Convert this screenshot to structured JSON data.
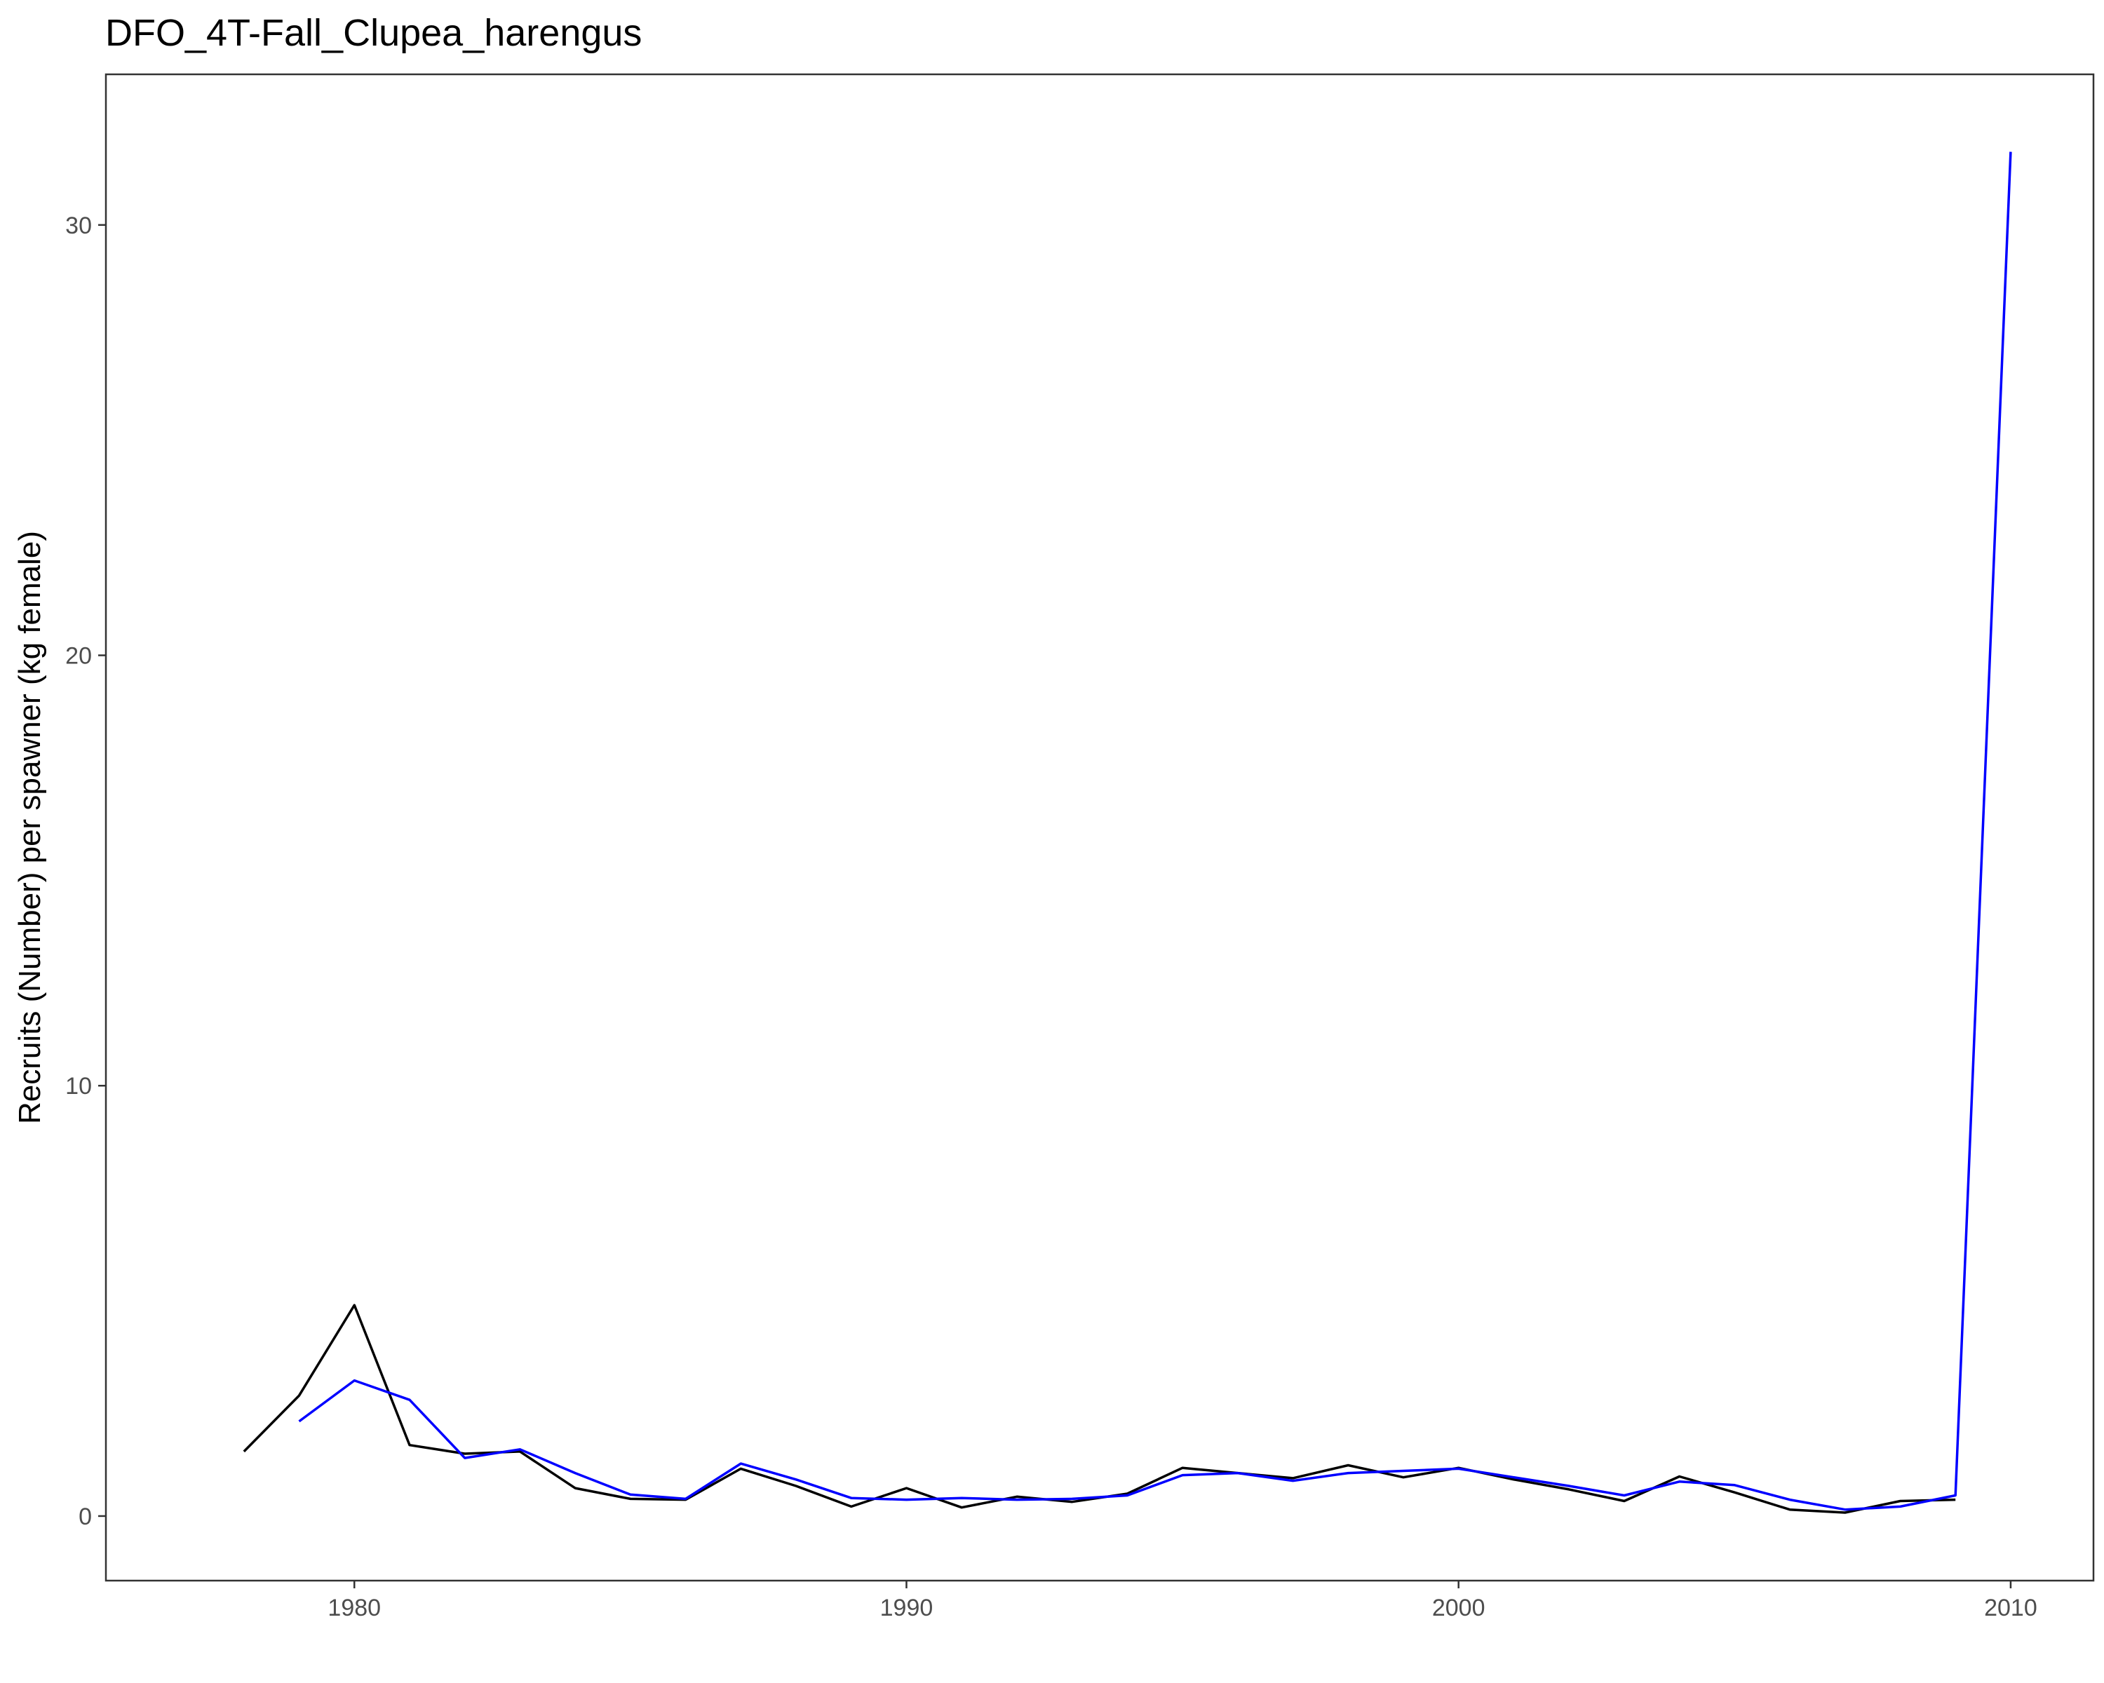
{
  "chart_data": {
    "type": "line",
    "title": "DFO_4T-Fall_Clupea_harengus",
    "xlabel": "",
    "ylabel": "Recruits (Number) per spawner (kg female)",
    "xlim": [
      1975.5,
      2011.5
    ],
    "ylim": [
      -1.5,
      33.5
    ],
    "x_ticks": [
      1980,
      1990,
      2000,
      2010
    ],
    "y_ticks": [
      0,
      10,
      20,
      30
    ],
    "grid": false,
    "legend": "none",
    "series": [
      {
        "color": "#000000",
        "x": [
          1978,
          1979,
          1980,
          1981,
          1982,
          1983,
          1984,
          1985,
          1986,
          1987,
          1988,
          1989,
          1990,
          1991,
          1992,
          1993,
          1994,
          1995,
          1996,
          1997,
          1998,
          1999,
          2000,
          2001,
          2002,
          2003,
          2004,
          2005,
          2006,
          2007,
          2008,
          2009
        ],
        "y": [
          1.5,
          2.8,
          4.9,
          1.65,
          1.45,
          1.5,
          0.65,
          0.4,
          0.38,
          1.1,
          0.7,
          0.22,
          0.65,
          0.2,
          0.45,
          0.33,
          0.52,
          1.12,
          1.0,
          0.88,
          1.18,
          0.9,
          1.12,
          0.85,
          0.62,
          0.35,
          0.92,
          0.55,
          0.15,
          0.08,
          0.35,
          0.38
        ]
      },
      {
        "color": "#0000ff",
        "x": [
          1979,
          1980,
          1981,
          1982,
          1983,
          1984,
          1985,
          1986,
          1987,
          1988,
          1989,
          1990,
          1991,
          1992,
          1993,
          1994,
          1995,
          1996,
          1997,
          1998,
          1999,
          2000,
          2001,
          2002,
          2003,
          2004,
          2005,
          2006,
          2007,
          2008,
          2009,
          2010
        ],
        "y": [
          2.2,
          3.15,
          2.7,
          1.35,
          1.55,
          1.0,
          0.5,
          0.4,
          1.22,
          0.85,
          0.42,
          0.38,
          0.42,
          0.38,
          0.4,
          0.48,
          0.95,
          1.0,
          0.82,
          1.0,
          1.05,
          1.1,
          0.9,
          0.7,
          0.48,
          0.8,
          0.72,
          0.38,
          0.15,
          0.22,
          0.48,
          31.7
        ]
      }
    ]
  }
}
